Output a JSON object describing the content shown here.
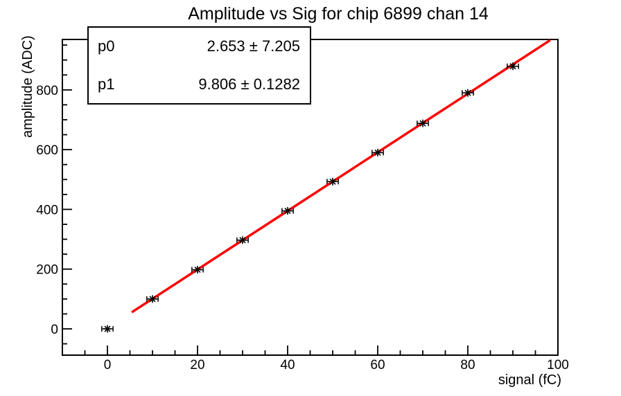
{
  "accent_colors": {
    "fit_line": "#ff0000",
    "marker": "#000000",
    "frame": "#000000",
    "background": "#ffffff"
  },
  "stats": {
    "rows": [
      {
        "label": "p0",
        "value": "2.653 ± 7.205"
      },
      {
        "label": "p1",
        "value": "9.806 ± 0.1282"
      }
    ]
  },
  "chart_data": {
    "type": "scatter",
    "title": "Amplitude vs Sig for chip 6899 chan 14",
    "xlabel": "signal (fC)",
    "ylabel": "amplitude (ADC)",
    "xlim": [
      -10,
      100
    ],
    "ylim": [
      -88,
      968.8
    ],
    "grid": false,
    "legend_position": "none",
    "x_major_ticks": [
      0,
      20,
      40,
      60,
      80,
      100
    ],
    "x_minor_step": 5,
    "y_major_ticks": [
      0,
      200,
      400,
      600,
      800
    ],
    "y_minor_step": 50,
    "x": [
      0,
      10,
      20,
      30,
      40,
      50,
      60,
      70,
      80,
      90
    ],
    "y": [
      0,
      100,
      198,
      297,
      395,
      493,
      590,
      688,
      790,
      879
    ],
    "x_error": 1.25,
    "marker_style": "asterisk",
    "fit": {
      "p0": 2.653,
      "p0_error": 7.205,
      "p1": 9.806,
      "p1_error": 0.1282,
      "draw_range": [
        5.4,
        98.3
      ],
      "color": "#ff0000"
    }
  }
}
